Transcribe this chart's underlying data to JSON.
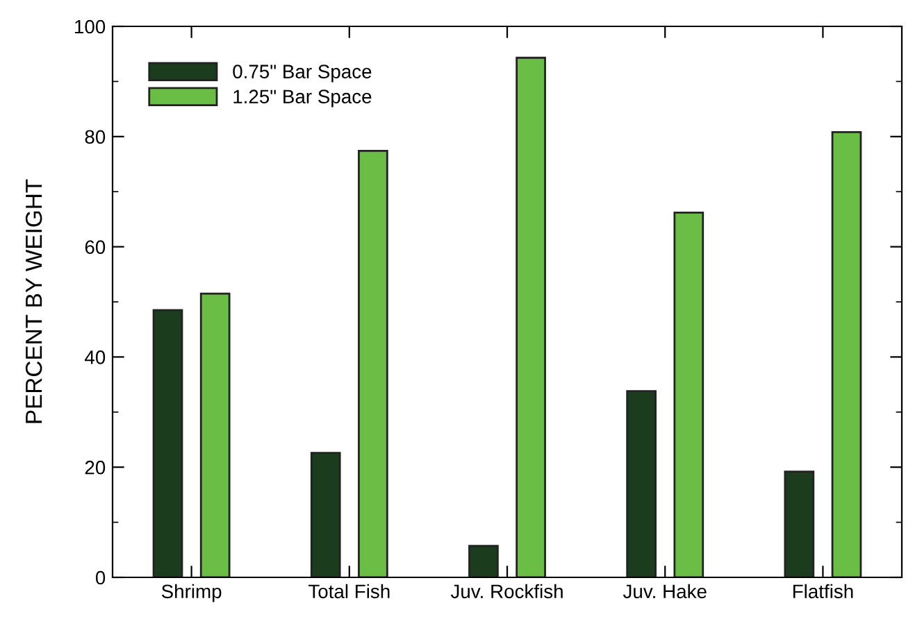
{
  "chart_data": {
    "type": "bar",
    "ylabel": "PERCENT BY WEIGHT",
    "categories": [
      "Shrimp",
      "Total Fish",
      "Juv. Rockfish",
      "Juv. Hake",
      "Flatfish"
    ],
    "series": [
      {
        "name": "0.75\" Bar Space",
        "color": "#1b3d1e",
        "values": [
          48.5,
          22.6,
          5.7,
          33.8,
          19.2
        ]
      },
      {
        "name": "1.25\" Bar Space",
        "color": "#6abd45",
        "values": [
          51.5,
          77.4,
          94.3,
          66.2,
          80.8
        ]
      }
    ],
    "ylim": [
      0,
      100
    ],
    "yticks": [
      0,
      20,
      40,
      60,
      80,
      100
    ],
    "legend": "top left"
  }
}
